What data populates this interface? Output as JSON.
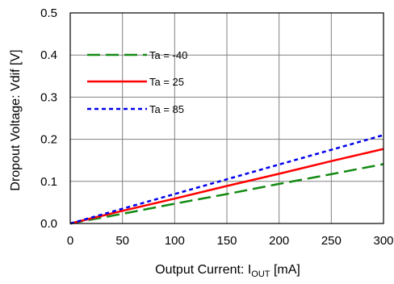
{
  "chart_data": {
    "type": "line",
    "xlabel": {
      "main": "Output Current: I",
      "sub": "OUT",
      "unit": " [mA]"
    },
    "ylabel": "Dropout Voltage: Vdif [V]",
    "xlim": [
      0,
      300
    ],
    "ylim": [
      0,
      0.5
    ],
    "x_ticks": [
      "0",
      "50",
      "100",
      "150",
      "200",
      "250",
      "300"
    ],
    "y_ticks": [
      "0.0",
      "0.1",
      "0.2",
      "0.3",
      "0.4",
      "0.5"
    ],
    "grid": true,
    "legend_position": "top-left",
    "series": [
      {
        "name": "Ta = -40",
        "color": "#138a13",
        "dash": "long-dash",
        "x": [
          0,
          50,
          100,
          150,
          200,
          250,
          300
        ],
        "y": [
          0,
          0.023,
          0.047,
          0.07,
          0.094,
          0.117,
          0.141
        ]
      },
      {
        "name": "Ta = 25",
        "color": "#ff0000",
        "dash": "solid",
        "x": [
          0,
          50,
          100,
          150,
          200,
          250,
          300
        ],
        "y": [
          0,
          0.03,
          0.059,
          0.089,
          0.118,
          0.148,
          0.177
        ]
      },
      {
        "name": "Ta = 85",
        "color": "#0000ee",
        "dash": "dotted",
        "x": [
          0,
          50,
          100,
          150,
          200,
          250,
          300
        ],
        "y": [
          0,
          0.035,
          0.07,
          0.105,
          0.14,
          0.175,
          0.21
        ]
      }
    ]
  }
}
